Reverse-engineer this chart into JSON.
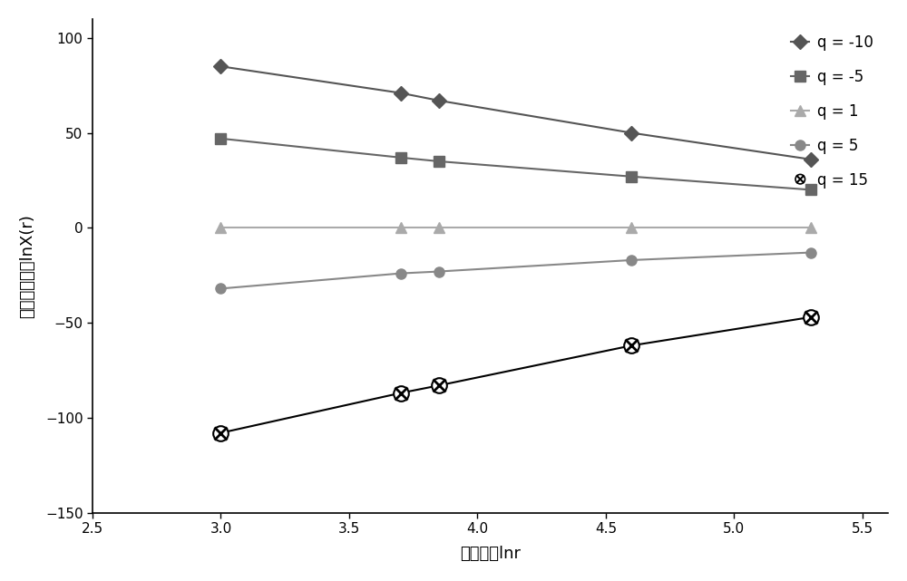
{
  "x_values": [
    3.0,
    3.7,
    3.85,
    4.6,
    5.3
  ],
  "series": [
    {
      "label": "q = -10",
      "y": [
        85,
        71,
        67,
        50,
        36
      ],
      "color": "#555555",
      "marker": "D",
      "markersize": 8,
      "linestyle": "-"
    },
    {
      "label": "q = -5",
      "y": [
        47,
        37,
        35,
        27,
        20
      ],
      "color": "#666666",
      "marker": "s",
      "markersize": 8,
      "linestyle": "-"
    },
    {
      "label": "q = 1",
      "y": [
        0,
        0,
        0,
        0,
        0
      ],
      "color": "#aaaaaa",
      "marker": "^",
      "markersize": 8,
      "linestyle": "-"
    },
    {
      "label": "q = 5",
      "y": [
        -32,
        -24,
        -23,
        -17,
        -13
      ],
      "color": "#888888",
      "marker": "o",
      "markersize": 8,
      "linestyle": "-"
    },
    {
      "label": "q = 15",
      "y": [
        -108,
        -87,
        -83,
        -62,
        -47
      ],
      "color": "#111111",
      "markersize": 10,
      "linestyle": "-"
    }
  ],
  "xlabel": "尺度对数lnr",
  "ylabel": "配分函数对数lnX(r)",
  "xlim": [
    2.5,
    5.6
  ],
  "ylim": [
    -150,
    110
  ],
  "yticks": [
    -150,
    -100,
    -50,
    0,
    50,
    100
  ],
  "xticks": [
    2.5,
    3.0,
    3.5,
    4.0,
    4.5,
    5.0,
    5.5
  ],
  "background_color": "#ffffff",
  "figsize": [
    10.0,
    6.41
  ],
  "dpi": 100
}
